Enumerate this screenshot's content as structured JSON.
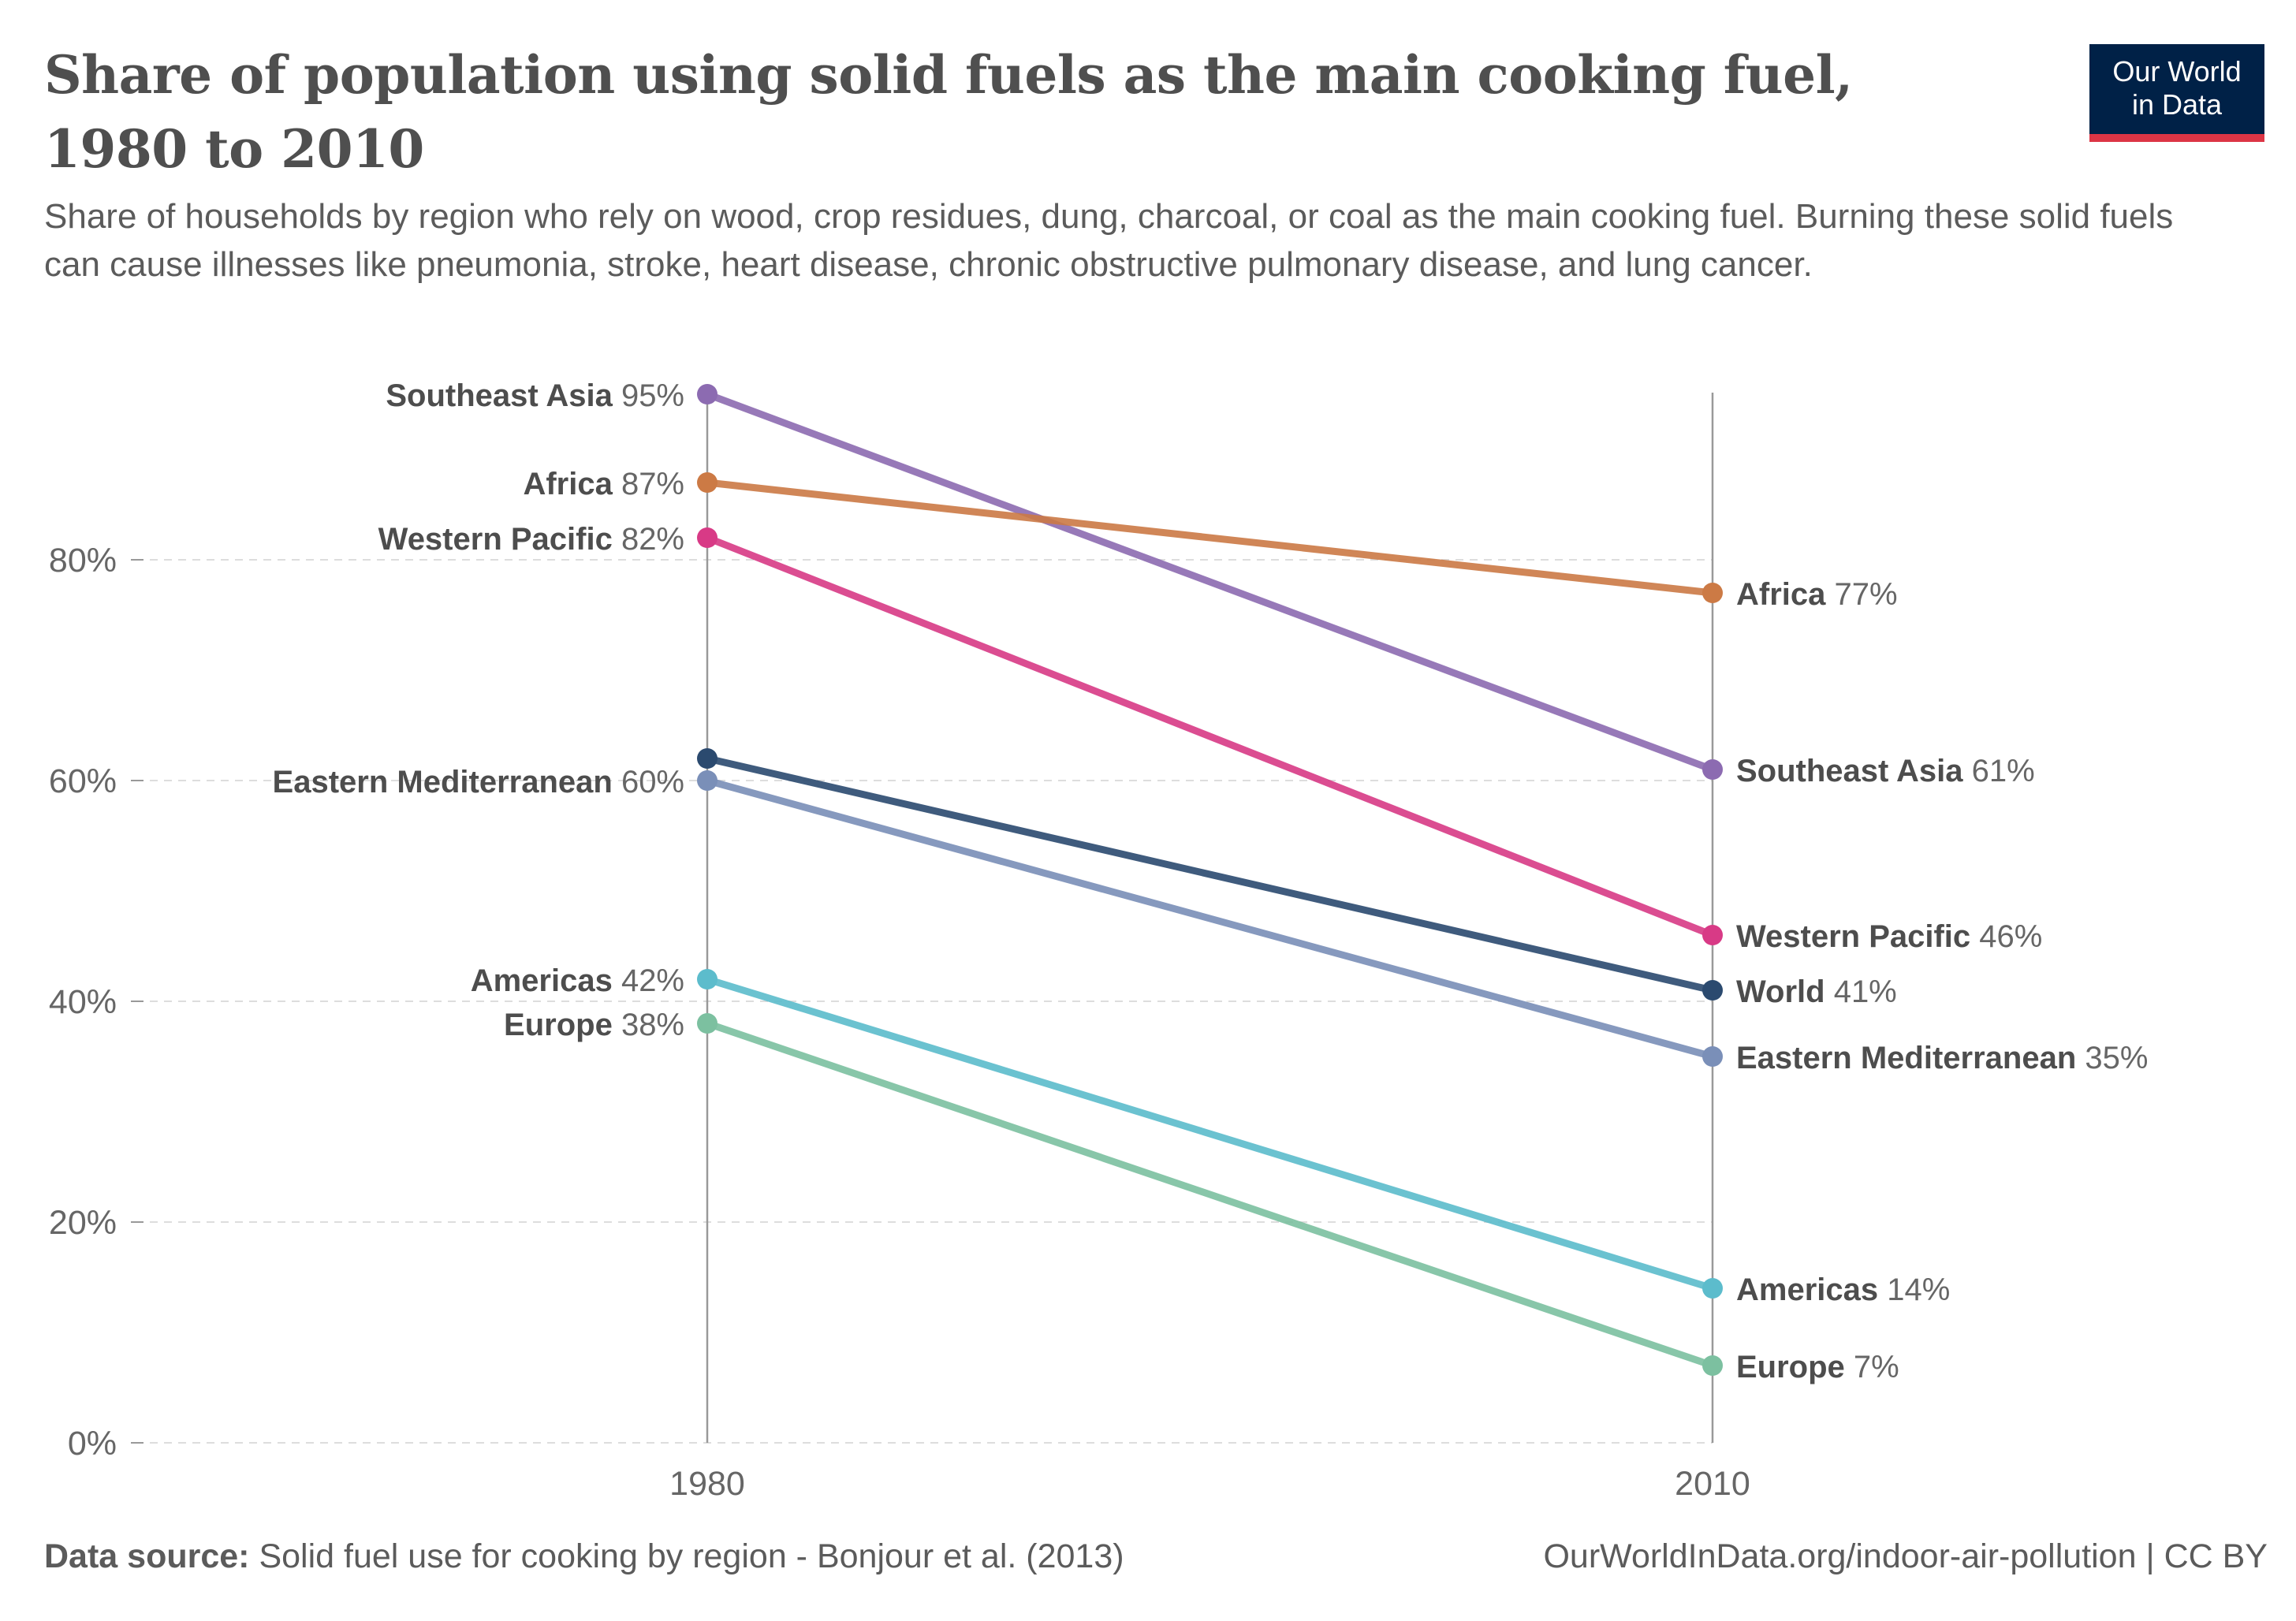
{
  "header": {
    "title": "Share of population using solid fuels as the main cooking fuel, 1980 to 2010",
    "subtitle": "Share of households by region who rely on wood, crop residues, dung, charcoal, or coal as the main cooking fuel. Burning these solid fuels can cause illnesses like pneumonia, stroke, heart disease, chronic obstructive pulmonary disease, and lung cancer."
  },
  "logo": {
    "line1": "Our World",
    "line2": "in Data",
    "bg_color": "#002147",
    "accent_color": "#dc3545"
  },
  "footer": {
    "source_label": "Data source:",
    "source_text": "Solid fuel use for cooking by region - Bonjour et al. (2013)",
    "url_license": "OurWorldInData.org/indoor-air-pollution | CC BY"
  },
  "chart_data": {
    "type": "line",
    "subtype": "slope",
    "x": [
      "1980",
      "2010"
    ],
    "y_ticks": [
      "0%",
      "20%",
      "40%",
      "60%",
      "80%"
    ],
    "y_tick_values": [
      0,
      20,
      40,
      60,
      80
    ],
    "ylim": [
      0,
      95
    ],
    "grid": "dashed horizontal",
    "series": [
      {
        "name": "Southeast Asia",
        "values": [
          95,
          61
        ],
        "color": "#8c6bb1",
        "labels": [
          "95%",
          "61%"
        ],
        "label_1980": true,
        "label_2010": true
      },
      {
        "name": "Africa",
        "values": [
          87,
          77
        ],
        "color": "#cc7a45",
        "labels": [
          "87%",
          "77%"
        ],
        "label_1980": true,
        "label_2010": true
      },
      {
        "name": "Western Pacific",
        "values": [
          82,
          46
        ],
        "color": "#d83a86",
        "labels": [
          "82%",
          "46%"
        ],
        "label_1980": true,
        "label_2010": true
      },
      {
        "name": "World",
        "values": [
          62,
          41
        ],
        "color": "#2b4a6f",
        "labels": [
          "",
          "41%"
        ],
        "label_1980": false,
        "label_2010": true
      },
      {
        "name": "Eastern Mediterranean",
        "values": [
          60,
          35
        ],
        "color": "#7a8fb8",
        "labels": [
          "60%",
          "35%"
        ],
        "label_1980": true,
        "label_2010": true
      },
      {
        "name": "Americas",
        "values": [
          42,
          14
        ],
        "color": "#5cbccc",
        "labels": [
          "42%",
          "14%"
        ],
        "label_1980": true,
        "label_2010": true
      },
      {
        "name": "Europe",
        "values": [
          38,
          7
        ],
        "color": "#7cc0a0",
        "labels": [
          "38%",
          "7%"
        ],
        "label_1980": true,
        "label_2010": true
      }
    ]
  }
}
